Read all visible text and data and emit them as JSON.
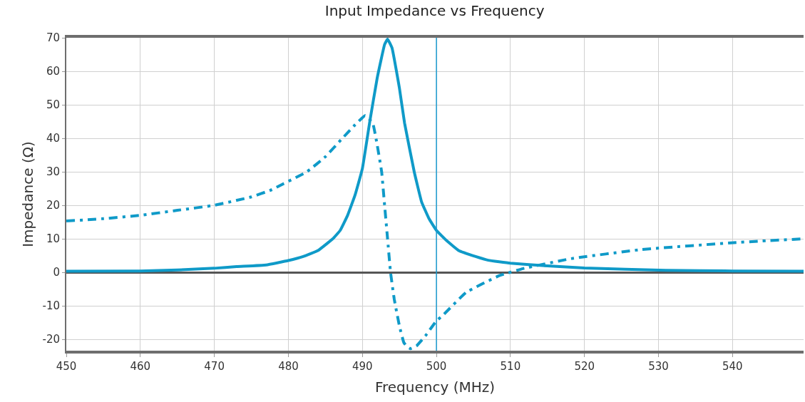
{
  "chart_data": {
    "type": "line",
    "title": "Input Impedance vs Frequency",
    "xlabel": "Frequency (MHz)",
    "ylabel": "Impedance (Ω)",
    "xlim": [
      450,
      549.6
    ],
    "ylim": [
      -23.4,
      70
    ],
    "xticks": [
      450,
      460,
      470,
      480,
      490,
      500,
      510,
      520,
      530,
      540
    ],
    "yticks": [
      -20,
      -10,
      0,
      10,
      20,
      30,
      40,
      50,
      60,
      70
    ],
    "grid": true,
    "marker": "none",
    "ref_lines": [
      {
        "axis": "x",
        "value": 500,
        "color": "#1a9bd0"
      }
    ],
    "series": [
      {
        "color": "#0f9ac8",
        "line_style": "solid",
        "x": [
          450,
          460,
          465,
          470,
          473,
          477,
          480,
          482,
          484,
          486,
          487,
          488,
          489,
          490,
          491,
          492,
          493,
          493.4,
          494,
          495,
          495.7,
          497,
          498,
          499,
          500,
          501.4,
          503,
          505.3,
          507,
          510,
          515,
          520,
          531,
          540,
          549.6
        ],
        "values": [
          0.3,
          0.4,
          0.7,
          1.2,
          1.7,
          2.2,
          3.5,
          4.7,
          6.5,
          10,
          12.5,
          17,
          23,
          31,
          45,
          58,
          68,
          69.6,
          67,
          55,
          44.5,
          30,
          21,
          16,
          12.5,
          9.4,
          6.5,
          4.7,
          3.6,
          2.7,
          1.9,
          1.3,
          0.6,
          0.4,
          0.3
        ]
      },
      {
        "color": "#0f9ac8",
        "line_style": "dashed",
        "x": [
          450,
          455,
          460,
          465,
          470,
          475,
          477.6,
          479.3,
          482.5,
          485,
          487.3,
          489,
          490.4,
          491.4,
          492,
          492.6,
          493,
          493.4,
          493.8,
          494.3,
          495,
          495.6,
          496.1,
          496.5,
          497.3,
          498.5,
          500,
          500.8,
          504,
          508.5,
          511.7,
          518,
          527.7,
          540.5,
          549.6
        ],
        "values": [
          15.3,
          16,
          17,
          18.5,
          20,
          22.5,
          24.5,
          26.4,
          30,
          34.5,
          40,
          44,
          46.8,
          44.5,
          38,
          30,
          20,
          10,
          0,
          -8,
          -16,
          -21,
          -22.3,
          -22.8,
          -22,
          -19,
          -14.5,
          -13,
          -6,
          -1,
          1.1,
          4,
          6.8,
          8.9,
          10
        ]
      }
    ]
  }
}
